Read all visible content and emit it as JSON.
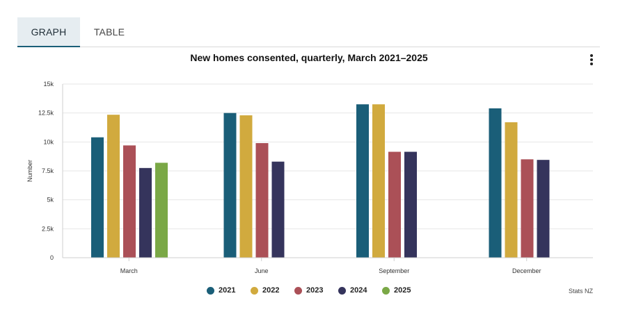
{
  "tabs": [
    {
      "label": "GRAPH",
      "active": true
    },
    {
      "label": "TABLE",
      "active": false
    }
  ],
  "menu_icon": "vertical-ellipsis-icon",
  "source": "Stats NZ",
  "chart_data": {
    "type": "bar",
    "title": "New homes consented, quarterly, March 2021–2025",
    "xlabel": "",
    "ylabel": "Number",
    "ylim": [
      0,
      15000
    ],
    "yticks": [
      0,
      2500,
      5000,
      7500,
      10000,
      12500,
      15000
    ],
    "ytick_labels": [
      "0",
      "2.5k",
      "5k",
      "7.5k",
      "10k",
      "12.5k",
      "15k"
    ],
    "grid": true,
    "legend": "bottom",
    "categories": [
      "March",
      "June",
      "September",
      "December"
    ],
    "series": [
      {
        "name": "2021",
        "color": "#1a5e78",
        "values": [
          10400,
          12500,
          13250,
          12900
        ]
      },
      {
        "name": "2022",
        "color": "#d1aa3e",
        "values": [
          12350,
          12300,
          13250,
          11700
        ]
      },
      {
        "name": "2023",
        "color": "#ab5057",
        "values": [
          9700,
          9900,
          9150,
          8500
        ]
      },
      {
        "name": "2024",
        "color": "#35345c",
        "values": [
          7750,
          8300,
          9150,
          8450
        ]
      },
      {
        "name": "2025",
        "color": "#7aa846",
        "values": [
          8200,
          null,
          null,
          null
        ]
      }
    ]
  }
}
